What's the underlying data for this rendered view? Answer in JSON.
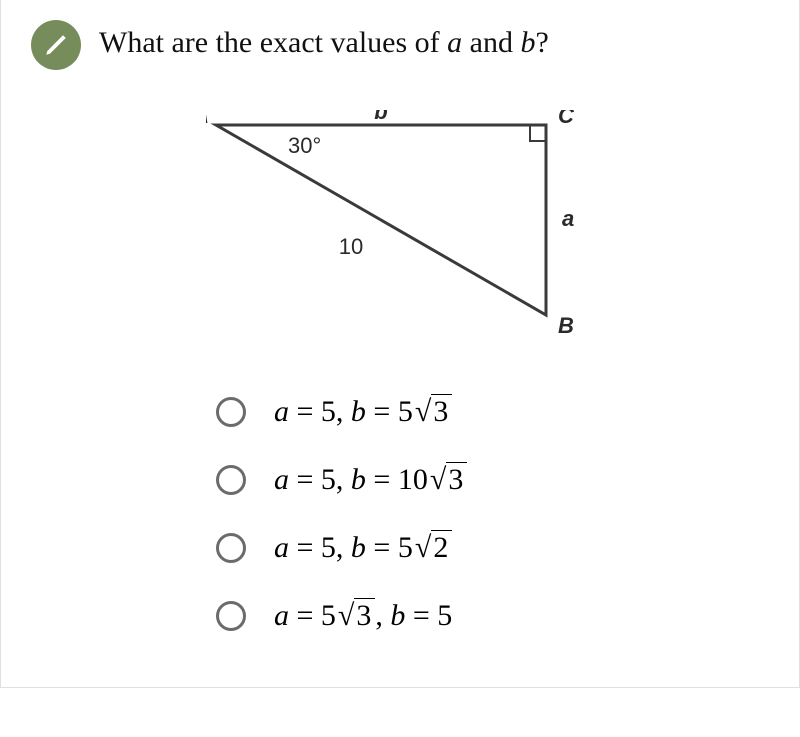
{
  "question": {
    "prefix": "What are the exact values of ",
    "var1": "a",
    "mid": " and ",
    "var2": "b",
    "suffix": "?"
  },
  "diagram": {
    "vertices": {
      "A": "A",
      "B": "B",
      "C": "C"
    },
    "angle_at_A": "30°",
    "hypotenuse": "10",
    "side_a": "a",
    "side_b": "b",
    "points": {
      "A": [
        10,
        15
      ],
      "C": [
        340,
        15
      ],
      "B": [
        340,
        205
      ]
    },
    "right_angle_size": 16,
    "colors": {
      "stroke": "#3a3a3a",
      "label": "#2a2a2a"
    },
    "stroke_width": 3
  },
  "options": [
    {
      "a_coeff": "5",
      "a_sqrt": "",
      "b_coeff": "5",
      "b_sqrt": "3"
    },
    {
      "a_coeff": "5",
      "a_sqrt": "",
      "b_coeff": "10",
      "b_sqrt": "3"
    },
    {
      "a_coeff": "5",
      "a_sqrt": "",
      "b_coeff": "5",
      "b_sqrt": "2"
    },
    {
      "a_coeff": "5",
      "a_sqrt": "3",
      "b_coeff": "5",
      "b_sqrt": ""
    }
  ],
  "labels": {
    "a_var": "a",
    "b_var": "b",
    "eq": " = ",
    "comma": ", ",
    "surd": "√"
  }
}
